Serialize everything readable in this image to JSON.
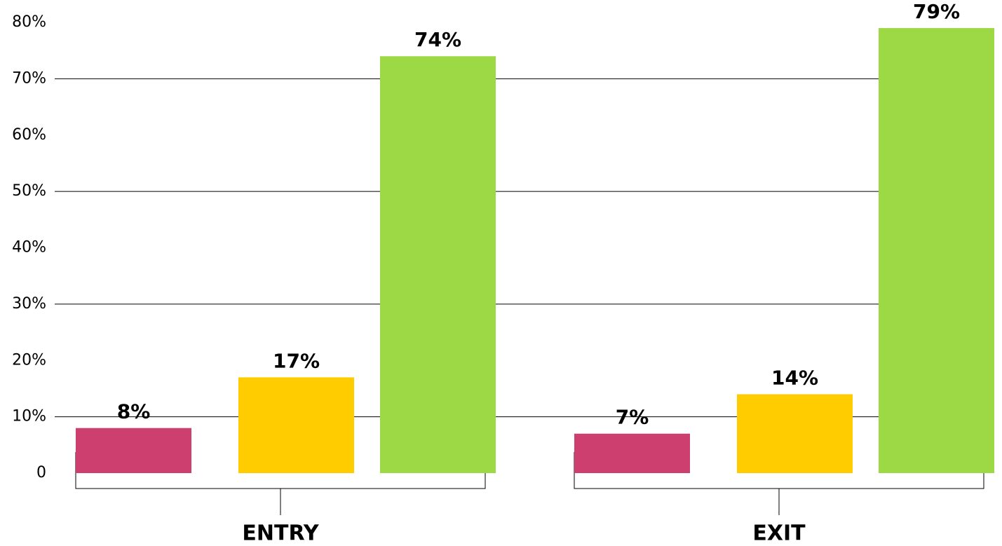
{
  "chart_data": {
    "type": "bar",
    "categories": [
      "ENTRY",
      "EXIT"
    ],
    "series": [
      {
        "color": "#cc3f6e",
        "values": [
          8,
          7
        ],
        "value_labels": [
          "8%",
          "7%"
        ]
      },
      {
        "color": "#ffcc00",
        "values": [
          17,
          14
        ],
        "value_labels": [
          "17%",
          "14%"
        ]
      },
      {
        "color": "#9dd845",
        "values": [
          74,
          79
        ],
        "value_labels": [
          "74%",
          "79%"
        ]
      }
    ],
    "ylim": [
      0,
      80
    ],
    "yticks": [
      0,
      {
        "value": 10,
        "label": "10%"
      },
      {
        "value": 20,
        "label": "20%"
      },
      {
        "value": 30,
        "label": "30%"
      },
      {
        "value": 40,
        "label": "40%"
      },
      {
        "value": 50,
        "label": "50%"
      },
      {
        "value": 60,
        "label": "60%"
      },
      {
        "value": 70,
        "label": "70%"
      },
      {
        "value": 80,
        "label": "80%"
      }
    ],
    "grid_lines": [
      10,
      30,
      50,
      70
    ]
  }
}
